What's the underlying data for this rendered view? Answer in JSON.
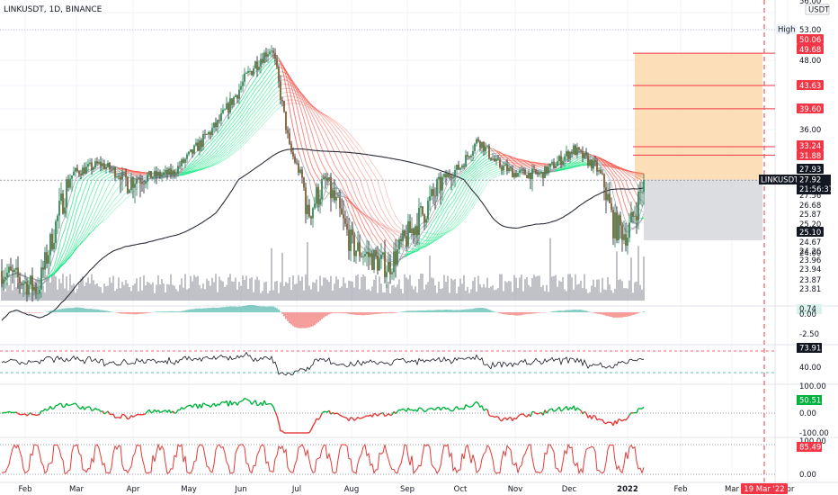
{
  "header": {
    "symbol_title": "LINKUSDT, 1D, BINANCE"
  },
  "price_scale": {
    "currency": "USDT",
    "top_value": "56.00",
    "high_label": "High",
    "high_value": "53.00",
    "ticks": [
      "48.00",
      "36.00",
      "24.00"
    ],
    "badges": [
      {
        "value": "50.06",
        "color": "#f23645"
      },
      {
        "value": "49.68",
        "color": "#f23645"
      },
      {
        "value": "43.63",
        "color": "#f23645"
      },
      {
        "value": "39.60",
        "color": "#f23645"
      },
      {
        "value": "33.24",
        "color": "#f23645"
      },
      {
        "value": "31.88",
        "color": "#f23645"
      },
      {
        "value": "27.93",
        "color": "#131722"
      },
      {
        "value": "27.56",
        "color": "#ffffff"
      },
      {
        "value": "26.68",
        "color": "#ffffff"
      },
      {
        "value": "25.87",
        "color": "#ffffff"
      },
      {
        "value": "25.20",
        "color": "#ffffff"
      },
      {
        "value": "25.10",
        "color": "#131722"
      },
      {
        "value": "24.67",
        "color": "#ffffff"
      },
      {
        "value": "24.26",
        "color": "#ffffff"
      },
      {
        "value": "23.96",
        "color": "#ffffff"
      },
      {
        "value": "23.94",
        "color": "#ffffff"
      },
      {
        "value": "23.87",
        "color": "#ffffff"
      },
      {
        "value": "23.81",
        "color": "#ffffff"
      }
    ],
    "last_price": {
      "symbol": "LINKUSDT",
      "price": "27.92",
      "countdown": "21:56:37"
    }
  },
  "x_axis": {
    "labels": [
      "Feb",
      "Mar",
      "Apr",
      "May",
      "Jun",
      "Jul",
      "Aug",
      "Sep",
      "Oct",
      "Nov",
      "Dec",
      "2022",
      "Feb",
      "Mar",
      "Apr"
    ],
    "cursor_date": "19 Mar '22"
  },
  "panes": {
    "macd": {
      "value": "0.74",
      "zero": "0.00",
      "low": "-2.50"
    },
    "rsi": {
      "value": "73.91",
      "tick": "40.00"
    },
    "cci": {
      "value": "50.51",
      "ticks": [
        "100.00",
        "0.00",
        "-100.00"
      ]
    },
    "stoch": {
      "value": "85.49",
      "ticks": [
        "100.00",
        "0.00"
      ]
    }
  },
  "trade_levels": {
    "entry": 27.93,
    "stop": 24.67,
    "targets": [
      31.88,
      33.24,
      39.6,
      43.63,
      49.68
    ]
  },
  "colors": {
    "up": "#26a69a",
    "down": "#ef5350",
    "green_ribbon": "#00e676",
    "red_ribbon": "#f44336",
    "target_zone": "#fcd9ad",
    "stop_zone": "#d6d7db",
    "level_line": "#f23645",
    "dashed_cursor": "#f23645"
  },
  "chart_data": {
    "type": "candlestick",
    "title": "LINKUSDT, 1D, BINANCE",
    "y_range": [
      21.5,
      56
    ],
    "x_range": [
      "2021-01",
      "2022-04"
    ],
    "monthly_closes": [
      {
        "month": "Jan 2021",
        "close": 22.5
      },
      {
        "month": "Feb 2021",
        "close": 29.0
      },
      {
        "month": "Mar 2021",
        "close": 28.5
      },
      {
        "month": "Apr 2021",
        "close": 36.5
      },
      {
        "month": "May 2021",
        "close": 50.0
      },
      {
        "month": "Jun 2021",
        "close": 27.0
      },
      {
        "month": "Jul 2021",
        "close": 23.0
      },
      {
        "month": "Aug 2021",
        "close": 25.5
      },
      {
        "month": "Sep 2021",
        "close": 33.0
      },
      {
        "month": "Oct 2021",
        "close": 29.0
      },
      {
        "month": "Nov 2021",
        "close": 30.0
      },
      {
        "month": "Dec 2021",
        "close": 25.0
      },
      {
        "month": "Jan 2022",
        "close": 27.92
      }
    ]
  }
}
